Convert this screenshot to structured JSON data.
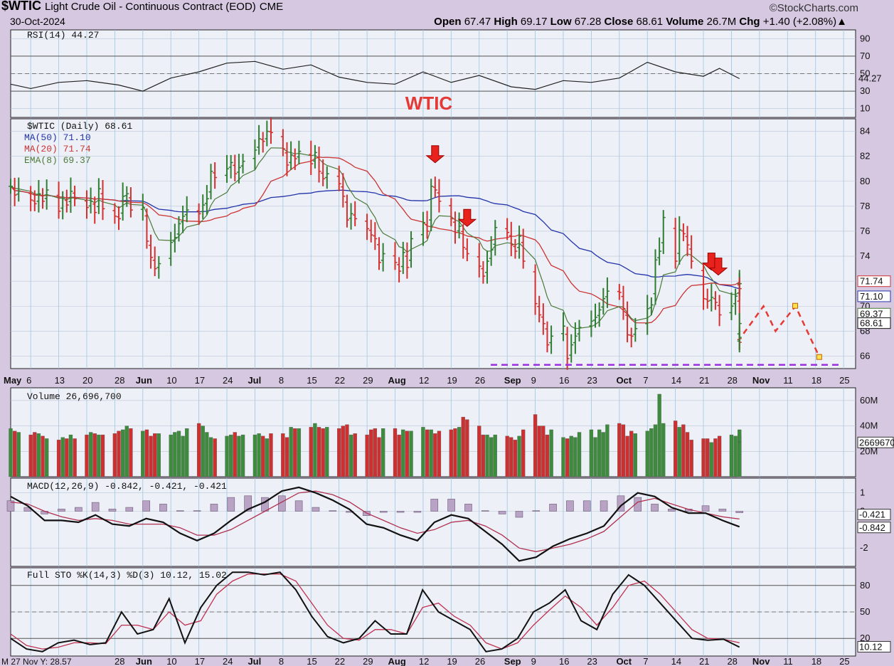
{
  "header": {
    "symbol": "$WTIC",
    "name": "Light Crude Oil - Continuous Contract (EOD)",
    "exchange": "CME",
    "date": "30-Oct-2024",
    "brand": "©StockCharts.com",
    "open_label": "Open",
    "open": "67.47",
    "high_label": "High",
    "high": "69.17",
    "low_label": "Low",
    "low": "67.28",
    "close_label": "Close",
    "close": "68.61",
    "volume_label": "Volume",
    "volume": "26.7M",
    "chg_label": "Chg",
    "chg": "+1.40 (+2.08%)",
    "chg_arrow": "▲"
  },
  "colors": {
    "up": "#2e7d32",
    "down": "#d32f2f",
    "ma50": "#2233aa",
    "ma20": "#cc3333",
    "ema8": "#4a7a3a",
    "panel": "#eef0f7",
    "grid": "#9bc6e3",
    "purple": "#9a30e0",
    "annotation": "#e53935"
  },
  "annotation": {
    "text": "WTIC"
  },
  "chart_data": [
    {
      "panel": "rsi",
      "type": "line",
      "label": "RSI(14) 44.27",
      "ylim": [
        0,
        100
      ],
      "ticks": [
        "90",
        "70",
        "50",
        "30",
        "10"
      ],
      "last_value_label": "44.27",
      "x_dates": [
        "2024-05-01",
        "2024-05-06",
        "2024-05-13",
        "2024-05-20",
        "2024-05-28",
        "2024-06-03",
        "2024-06-10",
        "2024-06-17",
        "2024-06-24",
        "2024-07-01",
        "2024-07-08",
        "2024-07-15",
        "2024-07-22",
        "2024-07-29",
        "2024-08-05",
        "2024-08-12",
        "2024-08-19",
        "2024-08-26",
        "2024-09-03",
        "2024-09-09",
        "2024-09-16",
        "2024-09-23",
        "2024-09-30",
        "2024-10-07",
        "2024-10-14",
        "2024-10-21",
        "2024-10-25",
        "2024-10-30"
      ],
      "values": [
        38,
        33,
        40,
        42,
        37,
        30,
        45,
        52,
        62,
        64,
        55,
        60,
        46,
        40,
        38,
        52,
        40,
        48,
        35,
        32,
        42,
        40,
        45,
        63,
        52,
        47,
        56,
        44.27
      ]
    },
    {
      "panel": "price",
      "type": "ohlc",
      "ylim": [
        65,
        85
      ],
      "ticks": [
        "84",
        "82",
        "80",
        "78",
        "76",
        "74",
        "72",
        "70",
        "68",
        "66"
      ],
      "legend": [
        {
          "name": "$WTIC (Daily) 68.61"
        },
        {
          "name": "MA(50) 71.10"
        },
        {
          "name": "MA(20) 71.74"
        },
        {
          "name": "EMA(8) 69.37"
        }
      ],
      "right_labels": [
        "71.74",
        "71.10",
        "69.37",
        "68.61"
      ],
      "closes": [
        79.6,
        78.9,
        79.2,
        78.5,
        78.2,
        79.0,
        78.4,
        79.3,
        77.6,
        78.6,
        78.1,
        79.2,
        78.6,
        77.9,
        78.4,
        77.5,
        79.4,
        77.8,
        77.2,
        77.0,
        78.8,
        79.0,
        77.7,
        77.9,
        75.2,
        73.9,
        73.0,
        73.4,
        75.1,
        75.5,
        76.6,
        77.2,
        77.7,
        77.4,
        78.1,
        78.6,
        80.8,
        80.3,
        81.0,
        81.5,
        80.6,
        81.1,
        81.6,
        82.5,
        83.4,
        83.2,
        84.0,
        83.9,
        82.6,
        81.3,
        82.1,
        81.8,
        82.4,
        81.4,
        82.3,
        80.8,
        80.2,
        80.6,
        79.8,
        78.8,
        76.9,
        77.4,
        77.0,
        76.2,
        75.7,
        75.4,
        73.5,
        74.2,
        73.5,
        72.8,
        74.3,
        73.1,
        75.4,
        76.7,
        76.0,
        79.6,
        79.3,
        78.4,
        77.0,
        75.9,
        76.4,
        74.7,
        74.2,
        73.2,
        72.4,
        73.6,
        74.5,
        76.3,
        75.9,
        74.9,
        74.4,
        75.6,
        73.6,
        70.2,
        69.3,
        68.6,
        66.9,
        67.6,
        68.4,
        65.8,
        66.9,
        67.6,
        68.3,
        68.8,
        69.1,
        69.7,
        70.6,
        71.2,
        71.1,
        69.8,
        67.7,
        67.6,
        68.2,
        69.8,
        70.1,
        73.7,
        74.4,
        77.1,
        73.6,
        76.1,
        75.8,
        74.9,
        73.6,
        70.6,
        70.4,
        70.7,
        70.3,
        69.3,
        70.0,
        70.8,
        71.8,
        71.8,
        71.4,
        67.4,
        67.1,
        67.5,
        68.61
      ],
      "forecast": [
        {
          "date": "2024-10-31",
          "value": 67.8
        },
        {
          "date": "2024-11-05",
          "value": 70.0
        },
        {
          "date": "2024-11-08",
          "value": 68.0
        },
        {
          "date": "2024-11-13",
          "value": 70.0
        },
        {
          "date": "2024-11-19",
          "value": 65.9
        }
      ],
      "support": 65.3,
      "signal_arrows": [
        "2024-08-15",
        "2024-08-23",
        "2024-10-23",
        "2024-10-24"
      ]
    },
    {
      "panel": "volume",
      "type": "bar",
      "label": "Volume 26,696,700",
      "ylim": [
        0,
        70
      ],
      "ticks": [
        "60M",
        "40M",
        "20M"
      ],
      "last_value_label": "26696700",
      "values": [
        38,
        36,
        35,
        33,
        35,
        34,
        32,
        30,
        29,
        31,
        30,
        33,
        30,
        33,
        35,
        34,
        33,
        33,
        34,
        36,
        37,
        40,
        38,
        36,
        37,
        32,
        34,
        34,
        33,
        35,
        36,
        32,
        38,
        42,
        40,
        35,
        31,
        30,
        32,
        33,
        35,
        32,
        33,
        33,
        34,
        32,
        30,
        34,
        34,
        31,
        39,
        38,
        38,
        39,
        42,
        39,
        38,
        39,
        38,
        40,
        41,
        33,
        34,
        33,
        37,
        38,
        31,
        38,
        38,
        33,
        37,
        36,
        36,
        39,
        37,
        37,
        34,
        36,
        37,
        38,
        39,
        47,
        45,
        40,
        33,
        33,
        31,
        33,
        32,
        31,
        29,
        32,
        37,
        49,
        40,
        40,
        33,
        37,
        31,
        30,
        32,
        31,
        35,
        37,
        31,
        37,
        35,
        41,
        42,
        41,
        32,
        36,
        34,
        36,
        38,
        41,
        65,
        42,
        44,
        39,
        41,
        35,
        29,
        30,
        30,
        27,
        30,
        32,
        33,
        32,
        32,
        30,
        32,
        29,
        30,
        33,
        37,
        28,
        27,
        26.7
      ]
    },
    {
      "panel": "macd",
      "type": "line",
      "label": "MACD(12,26,9) -0.842, -0.421, -0.421",
      "ylim": [
        -3,
        1.8
      ],
      "ticks": [
        "1",
        "0",
        "-2"
      ],
      "last_value_labels": [
        "-0.421",
        "-0.842"
      ],
      "series": [
        {
          "name": "MACD",
          "values": [
            0.8,
            0.3,
            -0.5,
            -0.5,
            -0.6,
            -0.2,
            -0.7,
            -0.8,
            -0.4,
            -0.6,
            -1.2,
            -1.6,
            -1.2,
            -0.5,
            0.1,
            0.5,
            1.1,
            1.3,
            1.0,
            0.6,
            0.1,
            -0.7,
            -0.9,
            -1.3,
            -1.6,
            -0.6,
            -0.2,
            -0.4,
            -1.1,
            -1.8,
            -2.7,
            -2.5,
            -1.9,
            -1.5,
            -1.2,
            -0.8,
            0.3,
            1.0,
            0.8,
            0.2,
            -0.1,
            -0.1,
            -0.5,
            -0.842
          ]
        },
        {
          "name": "Signal",
          "values": [
            0.5,
            0.4,
            0.0,
            -0.3,
            -0.5,
            -0.4,
            -0.5,
            -0.7,
            -0.7,
            -0.7,
            -0.9,
            -1.3,
            -1.3,
            -1.0,
            -0.5,
            0.0,
            0.5,
            1.0,
            1.1,
            0.9,
            0.5,
            -0.1,
            -0.5,
            -0.9,
            -1.2,
            -1.0,
            -0.6,
            -0.5,
            -0.8,
            -1.3,
            -2.0,
            -2.2,
            -2.0,
            -1.8,
            -1.5,
            -1.1,
            -0.3,
            0.5,
            0.7,
            0.4,
            0.1,
            -0.1,
            -0.3,
            -0.421
          ]
        }
      ]
    },
    {
      "panel": "stochastic",
      "type": "line",
      "label": "Full STO %K(14,3) %D(3) 10.12, 15.02",
      "ylim": [
        0,
        100
      ],
      "ticks": [
        "80",
        "50",
        "20"
      ],
      "last_value_label": "10.12",
      "series": [
        {
          "name": "%K",
          "values": [
            20,
            8,
            5,
            15,
            18,
            13,
            15,
            50,
            25,
            30,
            65,
            15,
            55,
            80,
            95,
            95,
            92,
            95,
            75,
            45,
            22,
            15,
            20,
            40,
            25,
            25,
            75,
            50,
            40,
            30,
            5,
            8,
            20,
            50,
            60,
            75,
            40,
            30,
            70,
            92,
            80,
            60,
            40,
            20,
            18,
            19,
            10.12
          ]
        },
        {
          "name": "%D",
          "values": [
            25,
            12,
            8,
            10,
            15,
            15,
            14,
            35,
            35,
            30,
            50,
            35,
            40,
            70,
            85,
            93,
            93,
            93,
            85,
            60,
            35,
            20,
            18,
            30,
            30,
            25,
            55,
            60,
            45,
            35,
            15,
            8,
            15,
            35,
            52,
            68,
            55,
            35,
            55,
            80,
            85,
            70,
            50,
            30,
            20,
            19,
            15.02
          ]
        }
      ]
    }
  ],
  "x_axis": {
    "ticks": [
      "May",
      "6",
      "13",
      "20",
      "28",
      "Jun",
      "10",
      "17",
      "24",
      "Jul",
      "8",
      "15",
      "22",
      "29",
      "Aug",
      "12",
      "19",
      "26",
      "Sep",
      "9",
      "16",
      "23",
      "Oct",
      "7",
      "14",
      "21",
      "28",
      "Nov",
      "11",
      "18",
      "25"
    ],
    "month_ticks": [
      "May",
      "Jun",
      "Jul",
      "Aug",
      "Sep",
      "Oct",
      "Nov"
    ]
  },
  "bottom_axis": {
    "readout": "M 27 Nov Y: 28.57",
    "ticks": [
      "28",
      "Jun",
      "10",
      "17",
      "24",
      "Jul",
      "8",
      "15",
      "22",
      "29",
      "Aug",
      "12",
      "19",
      "26",
      "Sep",
      "9",
      "16",
      "23",
      "Oct",
      "7",
      "14",
      "21",
      "28",
      "Nov",
      "11",
      "18",
      "25"
    ]
  }
}
